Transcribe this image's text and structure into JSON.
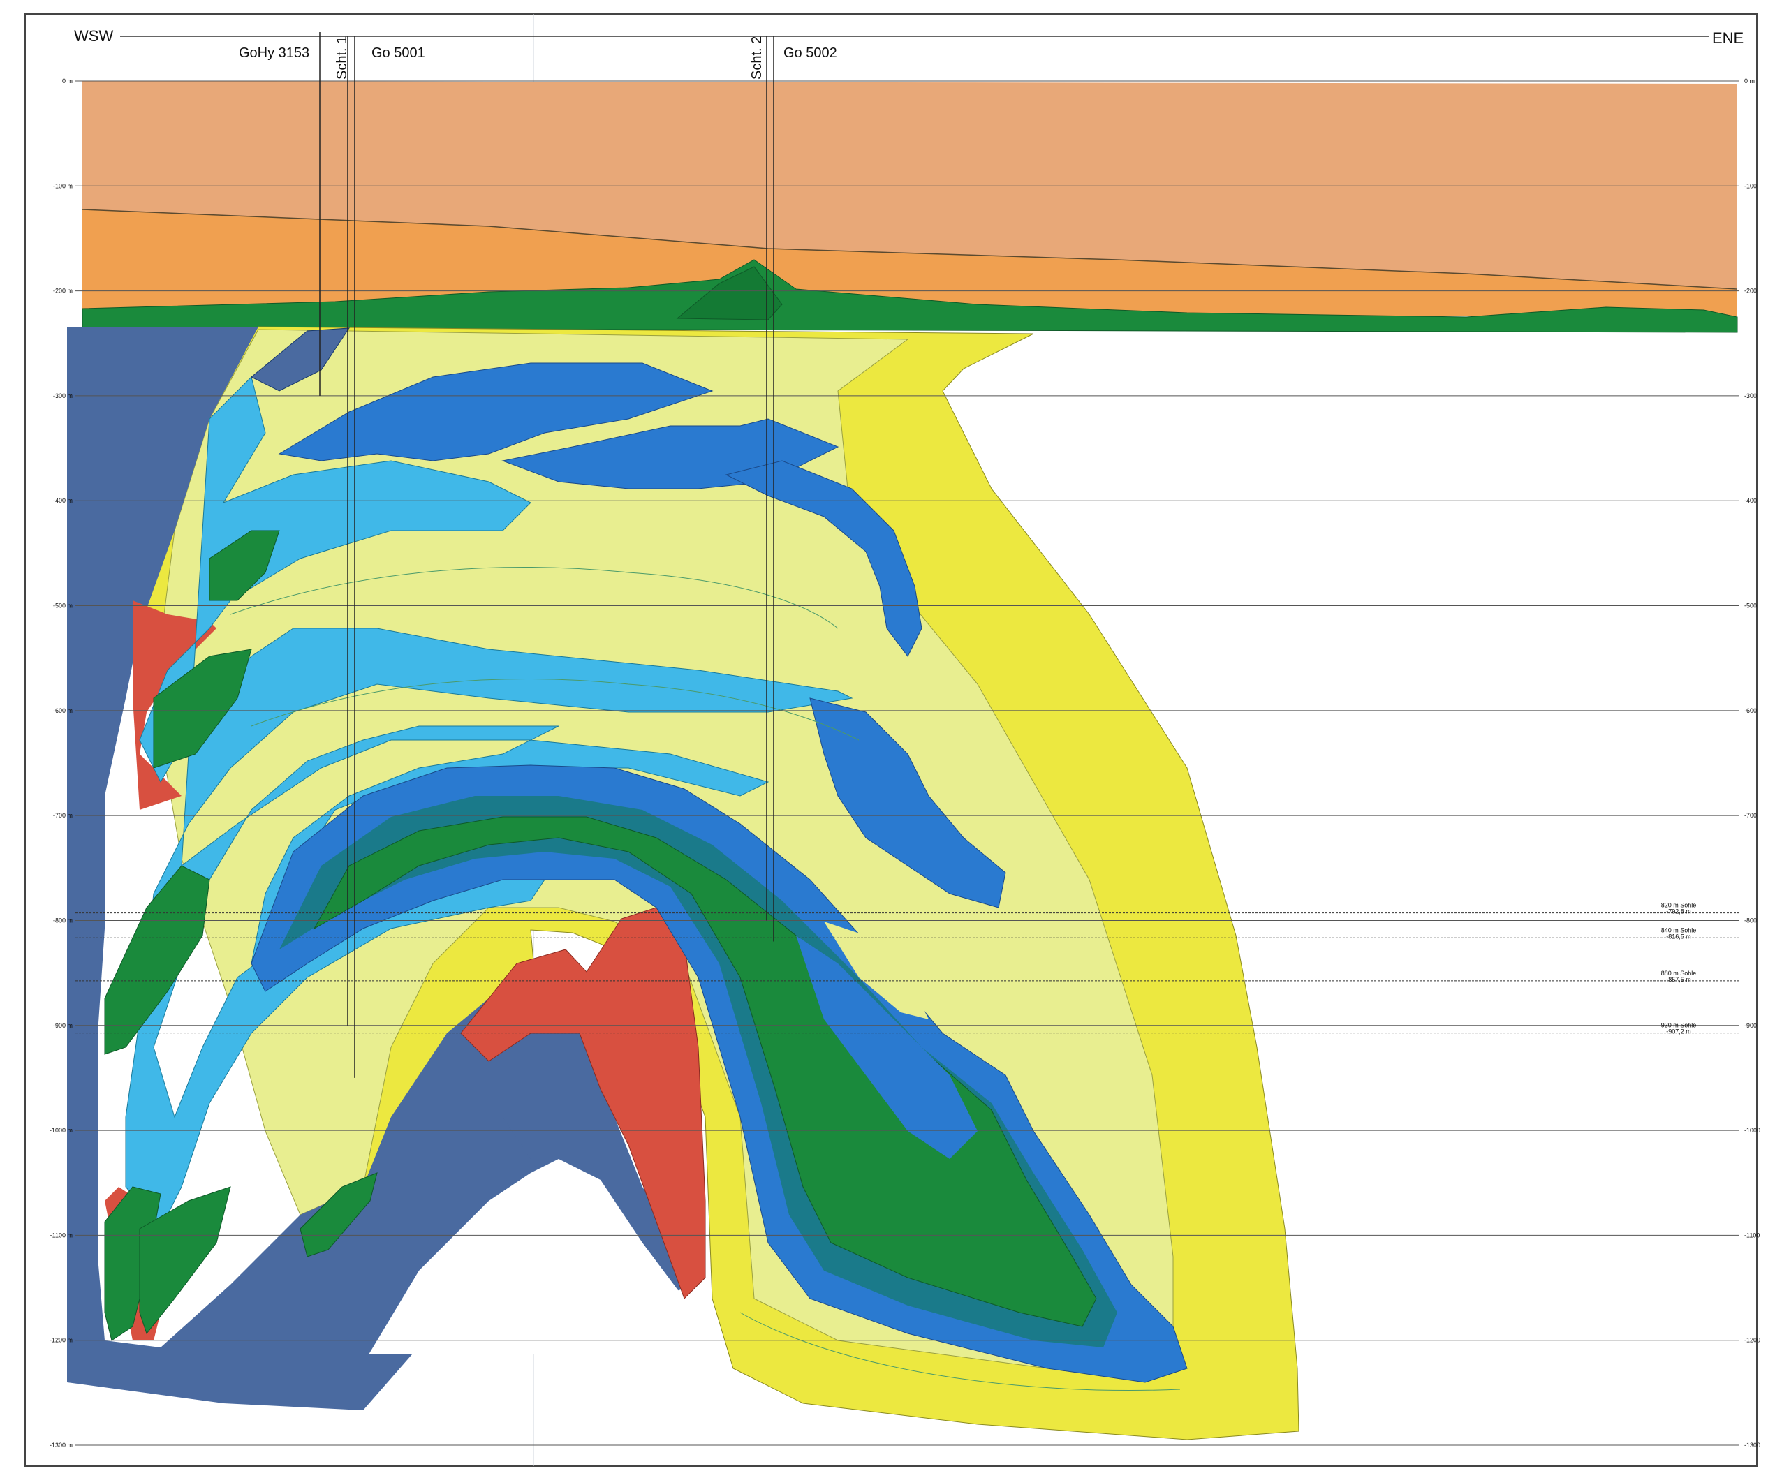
{
  "section": {
    "direction_left": "WSW",
    "direction_right": "ENE",
    "wells": [
      {
        "label": "GoHy 3153"
      },
      {
        "label": "Scht. 1"
      },
      {
        "label": "Go 5001"
      },
      {
        "label": "Scht. 2"
      },
      {
        "label": "Go 5002"
      }
    ],
    "depth_min": 0,
    "depth_max": -1300,
    "depth_levels": [
      0,
      -100,
      -200,
      -300,
      -400,
      -500,
      -600,
      -700,
      -800,
      -900,
      -1000,
      -1100,
      -1200,
      -1300
    ],
    "depth_labels_left": [
      "0 m",
      "-100 m",
      "-200 m",
      "-300 m",
      "-400 m",
      "-500 m",
      "-600 m",
      "-700 m",
      "-800 m",
      "-900 m",
      "-1000 m",
      "-1100 m",
      "-1200 m",
      "-1300 m"
    ],
    "depth_labels_right": [
      "0 m",
      "-100",
      "-200",
      "-300",
      "-400",
      "-500",
      "-600",
      "-700",
      "-800",
      "-900",
      "-1000",
      "-1100",
      "-1200",
      "-1300"
    ],
    "sohlen": [
      {
        "name": "820 m Sohle",
        "depth_label": "-792,8 m",
        "depth": -792.8
      },
      {
        "name": "840 m Sohle",
        "depth_label": "-816,5 m",
        "depth": -816.5
      },
      {
        "name": "880 m Sohle",
        "depth_label": "-857,5 m",
        "depth": -857.5
      },
      {
        "name": "930 m Sohle",
        "depth_label": "-907,2 m",
        "depth": -907.2
      }
    ],
    "colors": {
      "cover_upper": "#e8a878",
      "cover_lower": "#f0a050",
      "dark_green": "#1a8a3c",
      "slate_blue": "#4a6aa0",
      "mid_blue": "#2a7ad0",
      "light_blue": "#40b8e8",
      "pale_yellow": "#e8ee90",
      "yellow": "#ece840",
      "red": "#d85040",
      "teal": "#1a7a8a"
    }
  }
}
